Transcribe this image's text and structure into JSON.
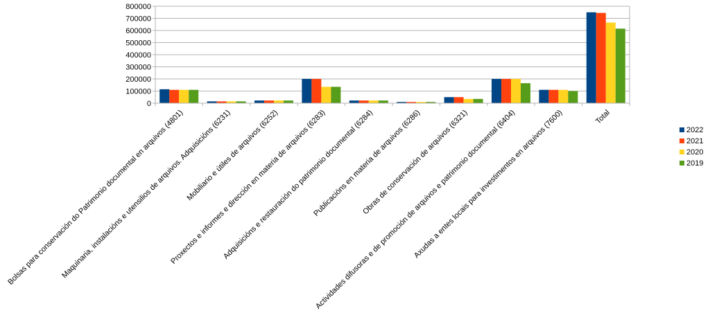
{
  "chart_data": {
    "type": "bar",
    "categories": [
      "Bolsas para conservación do Patrimonio documental en arquivos (4801)",
      "Maquinaria, instalacións e utensilios de arquivos. Adquisicións (6231)",
      "Mobiliario e útiles de arquivos (6252)",
      "Proxectos e informes e dirección en materia de arquivos (6283)",
      "Adquisicións e restauración do patrimonio documental (6284)",
      "Publicacións en materia de arquivos (6286)",
      "Obras de conservación de arquivos (6321)",
      "Actividades difusoras e de promoción de arquivos e patrimonio documental (6404)",
      "Axudas a entes locais  para investimentos en arquivos (7600)",
      "Total"
    ],
    "series": [
      {
        "name": "2022",
        "color": "#004586",
        "values": [
          115000,
          15000,
          22000,
          200000,
          22000,
          10000,
          50000,
          200000,
          110000,
          750000
        ]
      },
      {
        "name": "2021",
        "color": "#ff420e",
        "values": [
          110000,
          15000,
          22000,
          200000,
          22000,
          10000,
          50000,
          200000,
          110000,
          745000
        ]
      },
      {
        "name": "2020",
        "color": "#ffd320",
        "values": [
          110000,
          15000,
          22000,
          135000,
          22000,
          10000,
          35000,
          200000,
          110000,
          665000
        ]
      },
      {
        "name": "2019",
        "color": "#579d1c",
        "values": [
          110000,
          15000,
          22000,
          135000,
          22000,
          10000,
          35000,
          165000,
          100000,
          615000
        ]
      }
    ],
    "ylim": [
      0,
      800000
    ],
    "yticks": [
      "0",
      "100000",
      "200000",
      "300000",
      "400000",
      "500000",
      "600000",
      "700000",
      "800000"
    ],
    "grid": true,
    "legend_position": "right"
  }
}
